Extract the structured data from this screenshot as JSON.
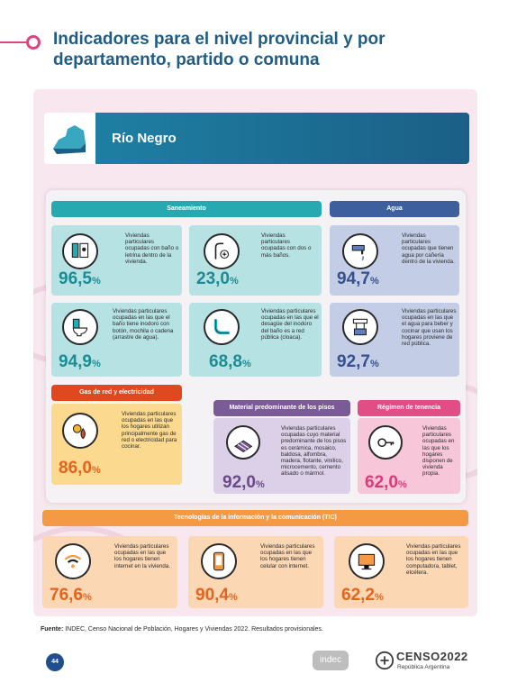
{
  "header": {
    "title": "Indicadores para el nivel provincial y por departamento, partido o comuna"
  },
  "province": {
    "name": "Río Negro"
  },
  "sections": {
    "saneamiento": "Saneamiento",
    "agua": "Agua",
    "gas": "Gas de red y electricidad",
    "pisos": "Material predominante de los pisos",
    "tenencia": "Régimen de tenencia",
    "tic": "Tecnologías de la información y la comunicación (TIC)"
  },
  "indicators": {
    "bano": {
      "value": "96,5",
      "unit": "%",
      "desc": "Viviendas particulares ocupadas con baño o letrina dentro de la vivienda.",
      "icon": "bathroom-icon"
    },
    "dos_banos": {
      "value": "23,0",
      "unit": "%",
      "desc": "Viviendas particulares ocupadas con dos o más baños.",
      "icon": "shower-icon"
    },
    "agua_caneria": {
      "value": "94,7",
      "unit": "%",
      "desc": "Viviendas particulares ocupadas que tienen agua por cañería dentro de la vivienda.",
      "icon": "faucet-icon"
    },
    "inodoro": {
      "value": "94,9",
      "unit": "%",
      "desc": "Viviendas particulares ocupadas en las que el baño tiene inodoro con botón, mochila o cadena (arrastre de agua).",
      "icon": "toilet-icon"
    },
    "desague": {
      "value": "68,8",
      "unit": "%",
      "desc": "Viviendas particulares ocupadas en las que el desagüe del inodoro del baño es a red pública (cloaca).",
      "icon": "drain-pipe-icon"
    },
    "agua_red": {
      "value": "92,7",
      "unit": "%",
      "desc": "Viviendas particulares ocupadas en las que el agua para beber y cocinar que usan los hogares proviene de red pública.",
      "icon": "water-network-icon"
    },
    "gas": {
      "value": "86,0",
      "unit": "%",
      "desc": "Viviendas particulares ocupadas en las que los hogares utilizan principalmente gas de red o electricidad para cocinar.",
      "icon": "gas-electricity-icon"
    },
    "pisos": {
      "value": "92,0",
      "unit": "%",
      "desc": "Viviendas particulares ocupadas cuyo material predominante de los pisos es cerámica, mosaico, baldosa, alfombra, madera, flotante, vinílico, microcemento, cemento alisado o mármol.",
      "icon": "floor-icon"
    },
    "tenencia": {
      "value": "62,0",
      "unit": "%",
      "desc": "Viviendas particulares ocupadas en las que los hogares disponen de vivienda propia.",
      "icon": "key-icon"
    },
    "internet": {
      "value": "76,6",
      "unit": "%",
      "desc": "Viviendas particulares ocupadas en las que los hogares tienen internet en la vivienda.",
      "icon": "wifi-icon"
    },
    "celular": {
      "value": "90,4",
      "unit": "%",
      "desc": "Viviendas particulares ocupadas en las que los hogares tienen celular con internet.",
      "icon": "mobile-phone-icon"
    },
    "computadora": {
      "value": "62,2",
      "unit": "%",
      "desc": "Viviendas particulares ocupadas en las que los hogares tienen computadora, tablet, etcétera.",
      "icon": "computer-icon"
    }
  },
  "footer": {
    "source_label": "Fuente:",
    "source_text": "INDEC, Censo Nacional de Población, Hogares y Viviendas 2022. Resultados provisionales.",
    "page_number": "44",
    "indec_logo": "indec",
    "censo_logo": "CENSO2022",
    "censo_sub": "República Argentina"
  },
  "colors": {
    "title": "#1f5d86",
    "accent_pink": "#d9467f",
    "province_bar": "#1b5f86",
    "teal": "#26a9b1",
    "blue": "#5f7ebd",
    "yellow": "#f2b632",
    "purple": "#7b5a98",
    "pink": "#e24d86",
    "orange": "#f59a44"
  }
}
